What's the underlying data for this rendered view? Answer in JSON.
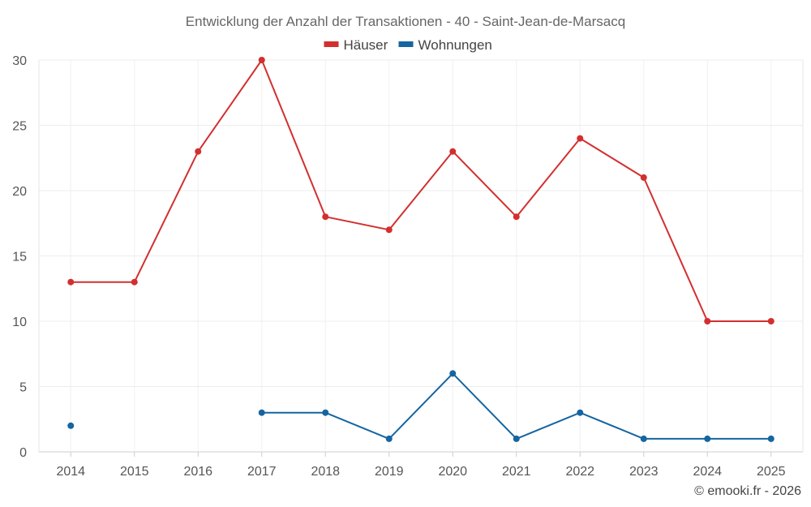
{
  "chart_data": {
    "type": "line",
    "title": "Entwicklung der Anzahl der Transaktionen - 40 - Saint-Jean-de-Marsacq",
    "categories": [
      "2014",
      "2015",
      "2016",
      "2017",
      "2018",
      "2019",
      "2020",
      "2021",
      "2022",
      "2023",
      "2024",
      "2025"
    ],
    "series": [
      {
        "name": "Häuser",
        "color": "#d32f2f",
        "values": [
          13,
          13,
          23,
          30,
          18,
          17,
          23,
          18,
          24,
          21,
          10,
          10
        ]
      },
      {
        "name": "Wohnungen",
        "color": "#1565a0",
        "values": [
          2,
          null,
          null,
          3,
          3,
          1,
          6,
          1,
          3,
          1,
          1,
          1
        ]
      }
    ],
    "yticks": [
      0,
      5,
      10,
      15,
      20,
      25,
      30
    ],
    "ylim": [
      0,
      30
    ],
    "grid": true,
    "legend_position": "top-center",
    "xlabel": "",
    "ylabel": ""
  },
  "credit": "© emooki.fr - 2026"
}
